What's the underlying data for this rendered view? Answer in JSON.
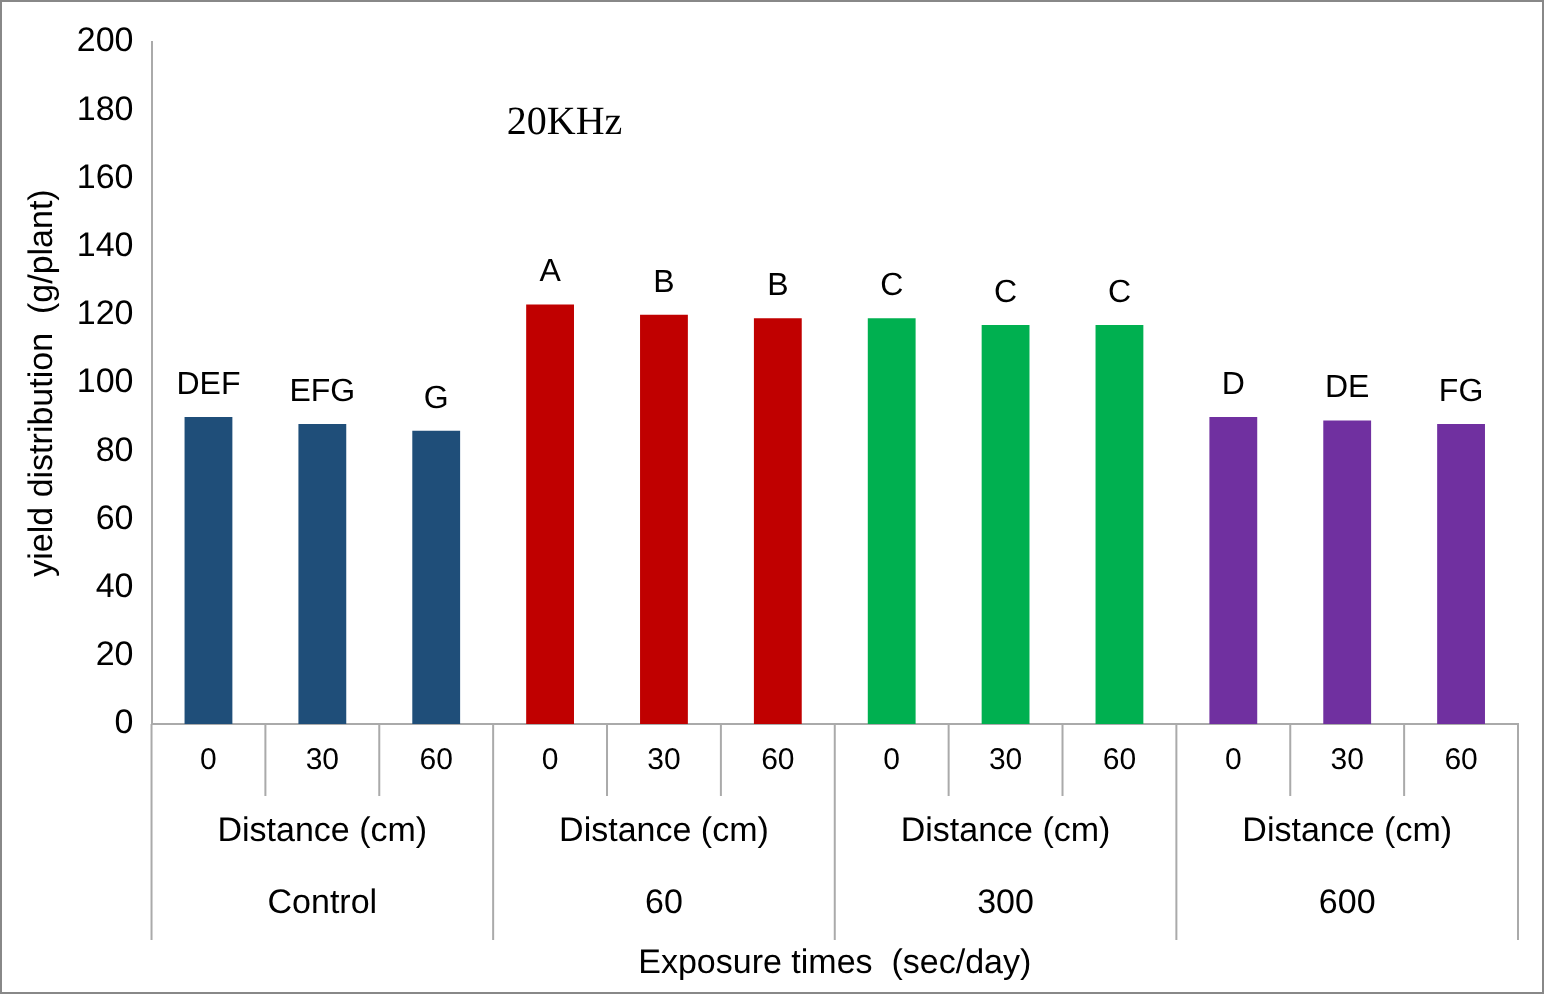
{
  "chart_data": {
    "type": "bar",
    "xlabel": "Exposure times  (sec/day)",
    "ylabel": "yield distribution  (g/plant)",
    "categories": [
      "0",
      "30",
      "60",
      "0",
      "30",
      "60",
      "0",
      "30",
      "60",
      "0",
      "30",
      "60"
    ],
    "values": [
      90,
      88,
      86,
      123,
      120,
      119,
      119,
      117,
      117,
      90,
      89,
      88
    ],
    "colors": [
      "#1f4e79",
      "#1f4e79",
      "#1f4e79",
      "#c00000",
      "#c00000",
      "#c00000",
      "#00b050",
      "#00b050",
      "#00b050",
      "#7030a0",
      "#7030a0",
      "#7030a0"
    ],
    "value_labels": [
      "DEF",
      "EFG",
      "G",
      "A",
      "B",
      "B",
      "C",
      "C",
      "C",
      "D",
      "DE",
      "FG"
    ],
    "ylim": [
      0,
      200
    ],
    "yticks": [
      0,
      20,
      40,
      60,
      80,
      100,
      120,
      140,
      160,
      180,
      200
    ],
    "grid": false,
    "annotations": [
      "20KHz",
      "Distance (cm)",
      "Distance (cm)",
      "Distance (cm)",
      "Distance (cm)",
      "Control",
      "60",
      "300",
      "600"
    ]
  }
}
